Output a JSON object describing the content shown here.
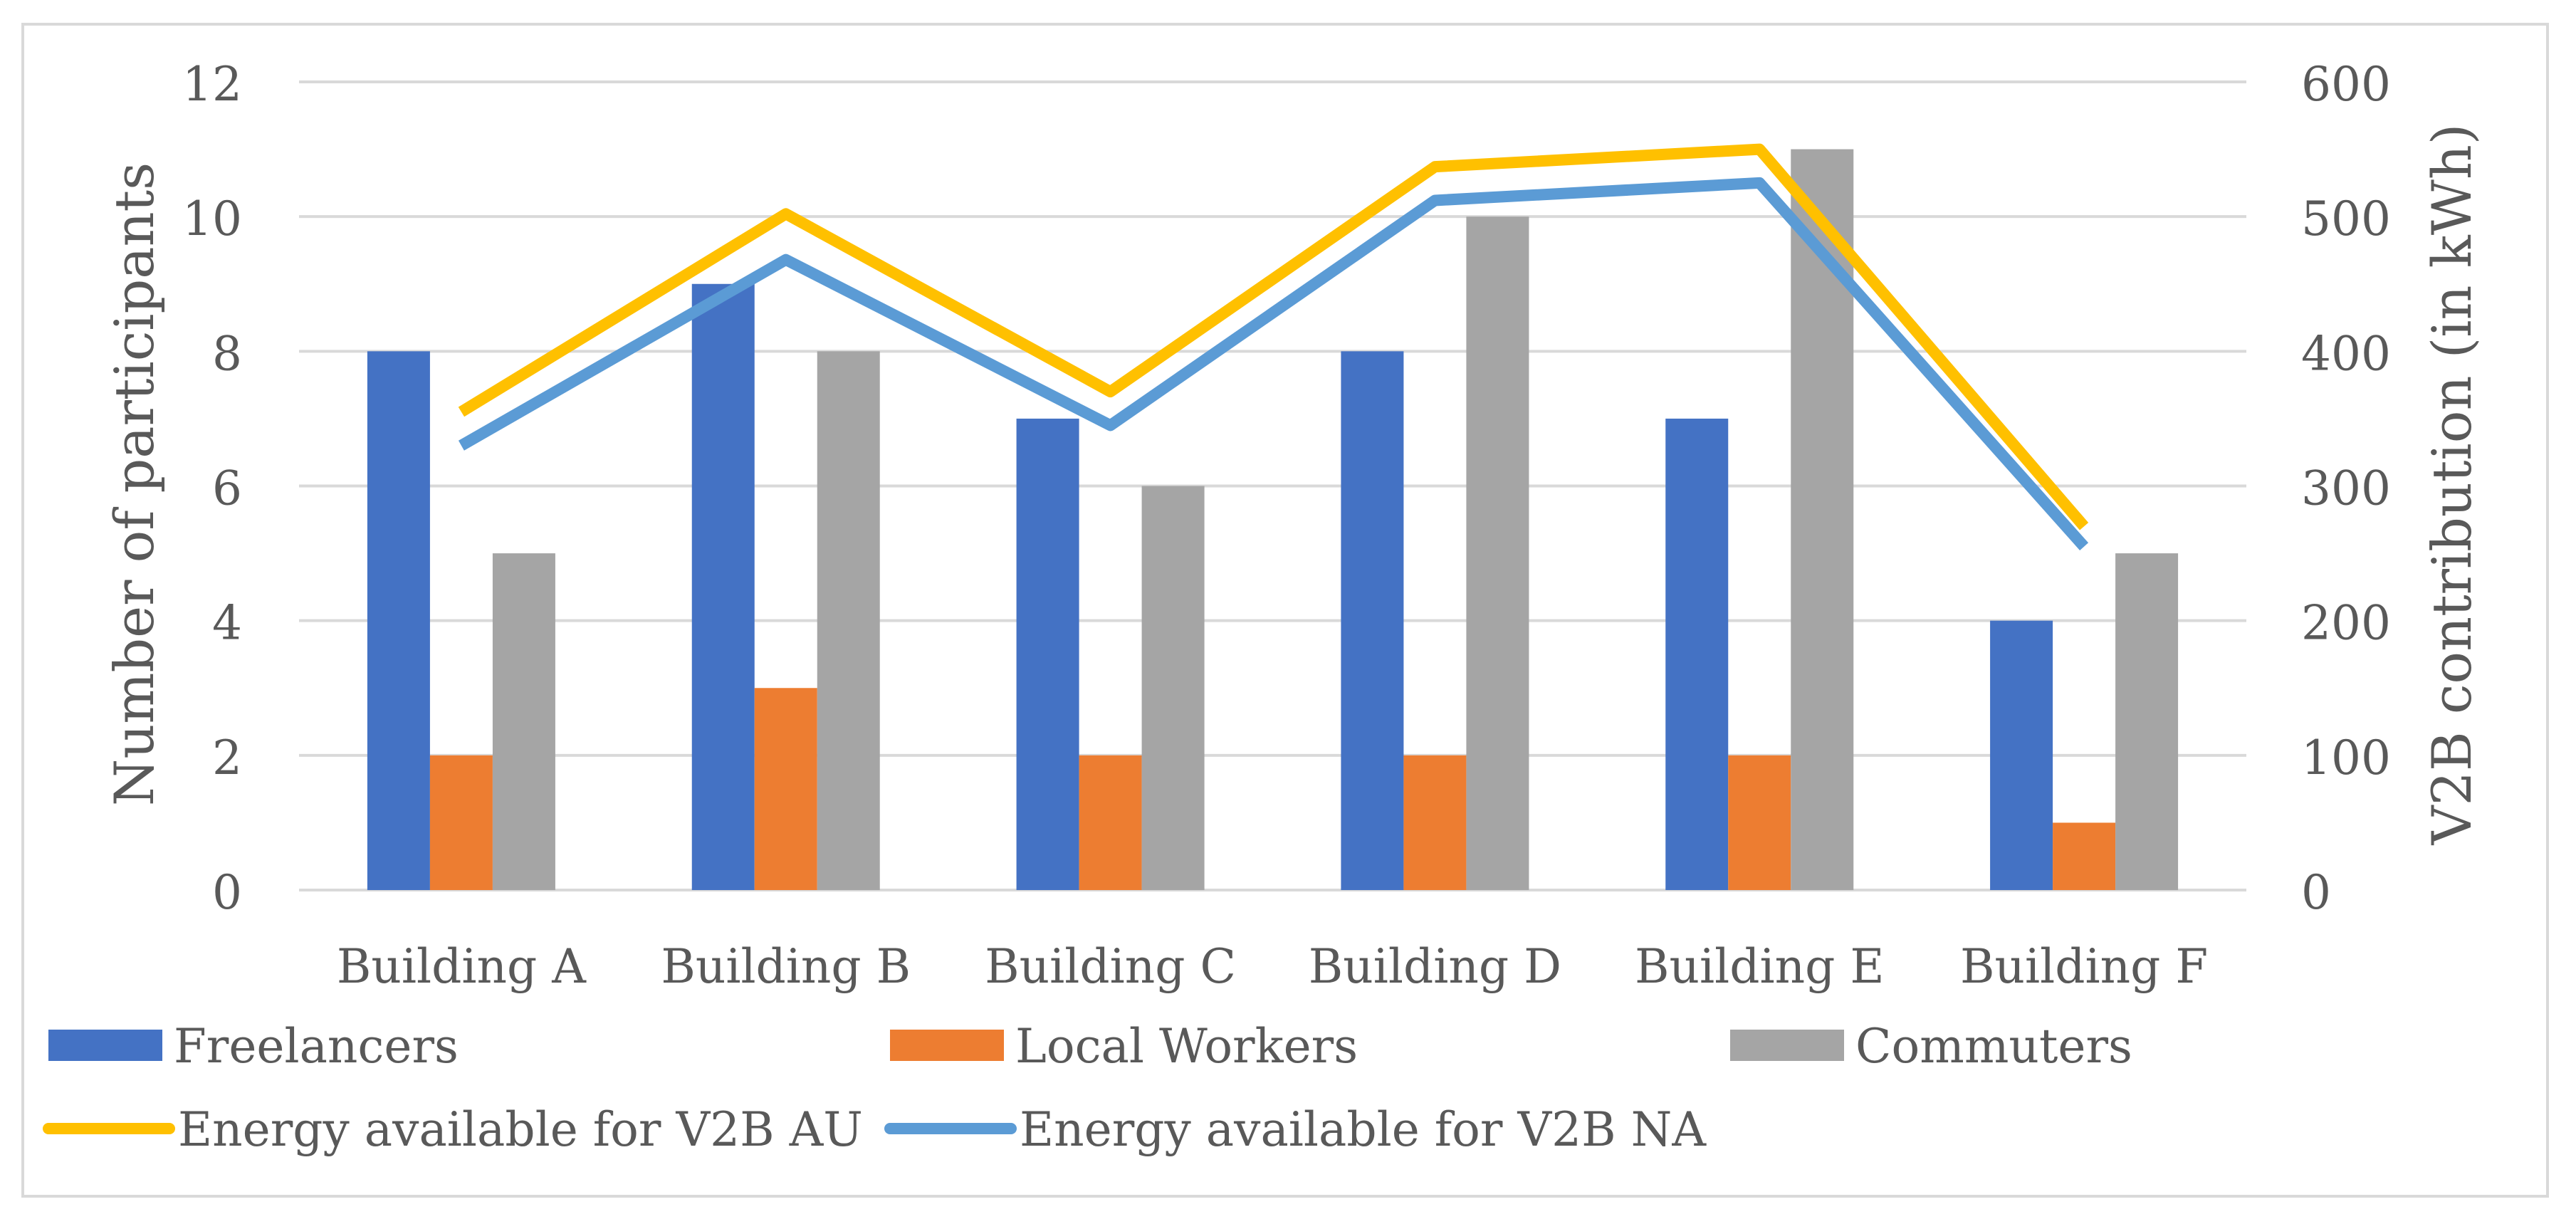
{
  "chart_data": {
    "type": "bar",
    "categories": [
      "Building A",
      "Building B",
      "Building C",
      "Building D",
      "Building E",
      "Building F"
    ],
    "ylabel": "Number of participants",
    "y2label": "V2B contribution (in kWh)",
    "ylim": [
      0,
      12
    ],
    "y2lim": [
      0,
      600
    ],
    "yticks": [
      "0",
      "2",
      "4",
      "6",
      "8",
      "10",
      "12"
    ],
    "y2ticks": [
      "0",
      "100",
      "200",
      "300",
      "400",
      "500",
      "600"
    ],
    "grid": true,
    "legend_position": "bottom",
    "series": [
      {
        "name": "Freelancers",
        "type": "bar",
        "axis": "left",
        "color": "#4472c4",
        "values": [
          8,
          9,
          7,
          8,
          7,
          4
        ]
      },
      {
        "name": "Local Workers",
        "type": "bar",
        "axis": "left",
        "color": "#ed7d31",
        "values": [
          2,
          3,
          2,
          2,
          2,
          1
        ]
      },
      {
        "name": "Commuters",
        "type": "bar",
        "axis": "left",
        "color": "#a5a5a5",
        "values": [
          5,
          8,
          6,
          10,
          11,
          5
        ]
      },
      {
        "name": "Energy available for V2B AU",
        "type": "line",
        "axis": "right",
        "color": "#ffc000",
        "values": [
          355,
          502,
          370,
          537,
          550,
          270
        ]
      },
      {
        "name": "Energy available for V2B NA",
        "type": "line",
        "axis": "right",
        "color": "#5b9bd5",
        "values": [
          330,
          468,
          345,
          512,
          525,
          255
        ]
      }
    ]
  }
}
